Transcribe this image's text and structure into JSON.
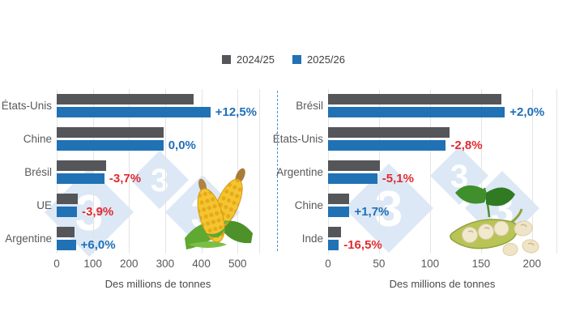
{
  "legend": {
    "items": [
      {
        "label": "2024/25",
        "color": "#54565A"
      },
      {
        "label": "2025/26",
        "color": "#2171B5"
      }
    ]
  },
  "colors": {
    "bar_2024_25": "#54565A",
    "bar_2025_26": "#2171B5",
    "positive_change": "#1F6FB8",
    "negative_change": "#E02B30",
    "axis_text": "#595959",
    "gridline": "#E4E4E4",
    "watermark": "#DCE8F5",
    "separator": "#4C8DC9"
  },
  "watermark": {
    "text": "3",
    "registered": "®"
  },
  "chart_data": [
    {
      "type": "bar",
      "orientation": "horizontal",
      "icon": "corn-icon",
      "categories": [
        "États-Unis",
        "Chine",
        "Brésil",
        "UE",
        "Argentine"
      ],
      "series": [
        {
          "name": "2024/25",
          "values": [
            378,
            295,
            137,
            58.5,
            50
          ]
        },
        {
          "name": "2025/26",
          "values": [
            425,
            295,
            132,
            56.2,
            53
          ]
        }
      ],
      "change_labels": [
        "+12,5%",
        "0,0%",
        "-3,7%",
        "-3,9%",
        "+6,0%"
      ],
      "xlabel": "Des millions de tonnes",
      "xticks": [
        0,
        100,
        200,
        300,
        400,
        500
      ],
      "xlim": [
        0,
        560
      ],
      "grid": true,
      "legend_position": "top-center"
    },
    {
      "type": "bar",
      "orientation": "horizontal",
      "icon": "soybean-icon",
      "categories": [
        "Brésil",
        "États-Unis",
        "Argentine",
        "Chine",
        "Inde"
      ],
      "series": [
        {
          "name": "2024/25",
          "values": [
            170,
            118.8,
            50.9,
            20.7,
            12.6
          ]
        },
        {
          "name": "2025/26",
          "values": [
            173.4,
            115.5,
            48.3,
            21.0,
            10.5
          ]
        }
      ],
      "change_labels": [
        "+2,0%",
        "-2,8%",
        "-5,1%",
        "+1,7%",
        "-16,5%"
      ],
      "xlabel": "Des millions de tonnes",
      "xticks": [
        0,
        50,
        100,
        150,
        200
      ],
      "xlim": [
        0,
        224
      ],
      "grid": true,
      "legend_position": "top-center"
    }
  ]
}
